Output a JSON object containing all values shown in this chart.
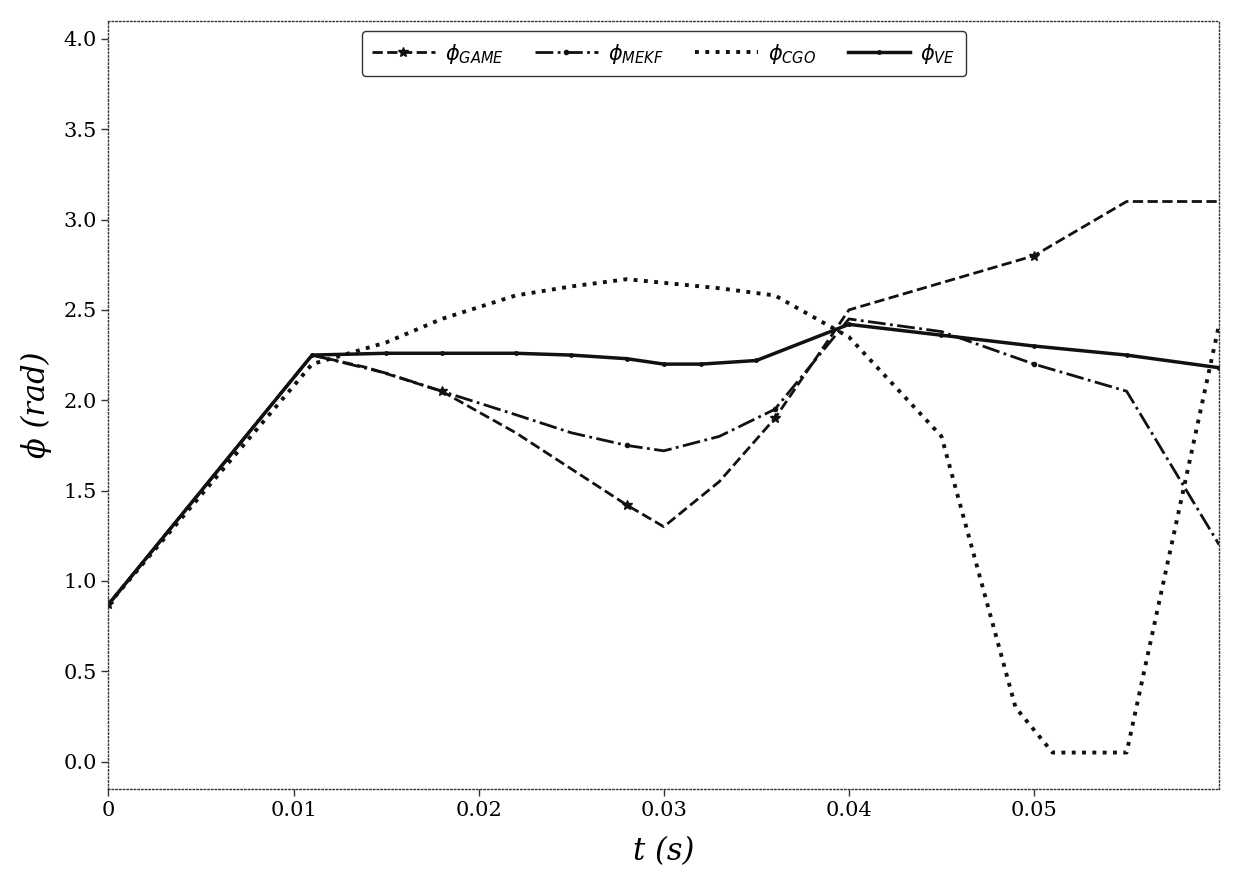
{
  "title": "",
  "xlabel": "t (s)",
  "ylabel": "ϕ (rad)",
  "xlim": [
    0,
    0.06
  ],
  "ylim": [
    -0.15,
    4.1
  ],
  "yticks": [
    0,
    0.5,
    1.0,
    1.5,
    2.0,
    2.5,
    3.0,
    3.5,
    4.0
  ],
  "xticks": [
    0,
    0.01,
    0.02,
    0.03,
    0.04,
    0.05
  ],
  "background_color": "#ffffff",
  "line_color": "#111111",
  "t_GAME": [
    0,
    0.011,
    0.014,
    0.018,
    0.022,
    0.025,
    0.028,
    0.03,
    0.033,
    0.036,
    0.04,
    0.045,
    0.05,
    0.055,
    0.06
  ],
  "y_GAME": [
    0.87,
    2.25,
    2.18,
    2.05,
    1.82,
    1.62,
    1.42,
    1.3,
    1.55,
    1.9,
    2.5,
    2.65,
    2.8,
    3.1,
    3.1
  ],
  "t_MEKF": [
    0,
    0.011,
    0.015,
    0.018,
    0.022,
    0.025,
    0.028,
    0.03,
    0.033,
    0.036,
    0.04,
    0.045,
    0.05,
    0.055,
    0.06
  ],
  "y_MEKF": [
    0.87,
    2.25,
    2.15,
    2.05,
    1.92,
    1.82,
    1.75,
    1.72,
    1.8,
    1.95,
    2.45,
    2.38,
    2.2,
    2.05,
    1.2
  ],
  "t_CGO": [
    0,
    0.011,
    0.015,
    0.018,
    0.022,
    0.025,
    0.028,
    0.03,
    0.033,
    0.036,
    0.04,
    0.045,
    0.049,
    0.051,
    0.055,
    0.06
  ],
  "y_CGO": [
    0.87,
    2.2,
    2.32,
    2.45,
    2.58,
    2.63,
    2.67,
    2.65,
    2.62,
    2.58,
    2.35,
    1.8,
    0.3,
    0.05,
    0.05,
    2.42
  ],
  "t_VE": [
    0,
    0.011,
    0.015,
    0.018,
    0.022,
    0.025,
    0.028,
    0.03,
    0.032,
    0.035,
    0.04,
    0.045,
    0.05,
    0.055,
    0.06
  ],
  "y_VE": [
    0.87,
    2.25,
    2.26,
    2.26,
    2.26,
    2.25,
    2.23,
    2.2,
    2.2,
    2.22,
    2.42,
    2.36,
    2.3,
    2.25,
    2.18
  ]
}
